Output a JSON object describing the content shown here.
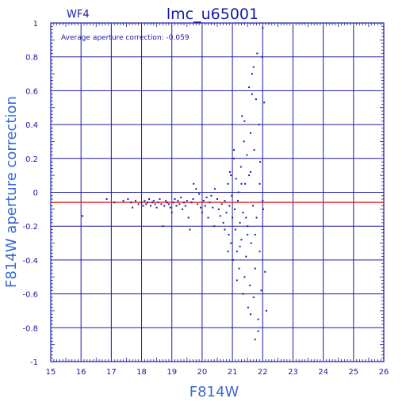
{
  "chart_data": {
    "type": "scatter",
    "panel_label": "WF4",
    "title": "lmc_u65001",
    "xlabel": "F814W",
    "ylabel": "F814W aperture correction",
    "annotation": "Average aperture correction: -0.059",
    "xlim": [
      15,
      26
    ],
    "ylim": [
      -1,
      1
    ],
    "x_ticks": [
      15,
      16,
      17,
      18,
      19,
      20,
      21,
      22,
      23,
      24,
      25,
      26
    ],
    "y_ticks": [
      -1,
      -0.8,
      -0.6,
      -0.4,
      -0.2,
      0,
      0.2,
      0.4,
      0.6,
      0.8,
      1
    ],
    "grid": true,
    "average_line": -0.059,
    "colors": {
      "axes": "#1a1aa6",
      "points": "#1a1aa6",
      "average_line": "#e02020"
    },
    "points": [
      [
        16.05,
        -0.14
      ],
      [
        16.85,
        -0.04
      ],
      [
        17.1,
        -0.06
      ],
      [
        17.4,
        -0.05
      ],
      [
        17.55,
        -0.04
      ],
      [
        17.65,
        -0.06
      ],
      [
        17.7,
        -0.09
      ],
      [
        17.8,
        -0.05
      ],
      [
        17.9,
        -0.07
      ],
      [
        18.0,
        -0.06
      ],
      [
        18.05,
        -0.08
      ],
      [
        18.1,
        -0.05
      ],
      [
        18.15,
        -0.07
      ],
      [
        18.2,
        -0.06
      ],
      [
        18.25,
        -0.04
      ],
      [
        18.3,
        -0.08
      ],
      [
        18.35,
        -0.06
      ],
      [
        18.4,
        -0.05
      ],
      [
        18.45,
        -0.07
      ],
      [
        18.5,
        -0.09
      ],
      [
        18.55,
        -0.06
      ],
      [
        18.6,
        -0.04
      ],
      [
        18.65,
        -0.07
      ],
      [
        18.7,
        -0.2
      ],
      [
        18.75,
        -0.08
      ],
      [
        18.8,
        -0.05
      ],
      [
        18.85,
        -0.06
      ],
      [
        18.9,
        -0.07
      ],
      [
        18.95,
        -0.09
      ],
      [
        19.0,
        -0.12
      ],
      [
        19.05,
        -0.06
      ],
      [
        19.1,
        -0.04
      ],
      [
        19.15,
        -0.08
      ],
      [
        19.2,
        -0.05
      ],
      [
        19.25,
        -0.07
      ],
      [
        19.3,
        -0.03
      ],
      [
        19.35,
        -0.1
      ],
      [
        19.4,
        -0.06
      ],
      [
        19.45,
        -0.08
      ],
      [
        19.5,
        -0.05
      ],
      [
        19.55,
        -0.15
      ],
      [
        19.6,
        -0.22
      ],
      [
        19.65,
        -0.06
      ],
      [
        19.7,
        -0.04
      ],
      [
        19.72,
        0.05
      ],
      [
        19.8,
        0.02
      ],
      [
        19.85,
        -0.07
      ],
      [
        19.9,
        -0.01
      ],
      [
        19.95,
        -0.09
      ],
      [
        20.0,
        -0.12
      ],
      [
        20.05,
        -0.05
      ],
      [
        20.1,
        -0.08
      ],
      [
        20.15,
        -0.03
      ],
      [
        20.2,
        -0.15
      ],
      [
        20.25,
        -0.06
      ],
      [
        20.3,
        -0.02
      ],
      [
        20.35,
        -0.09
      ],
      [
        20.4,
        -0.2
      ],
      [
        20.42,
        0.02
      ],
      [
        20.5,
        -0.04
      ],
      [
        20.55,
        -0.1
      ],
      [
        20.6,
        -0.14
      ],
      [
        20.65,
        -0.07
      ],
      [
        20.7,
        -0.18
      ],
      [
        20.75,
        -0.05
      ],
      [
        20.8,
        -0.12
      ],
      [
        20.85,
        0.05
      ],
      [
        20.88,
        -0.25
      ],
      [
        20.9,
        -0.08
      ],
      [
        20.92,
        0.12
      ],
      [
        20.95,
        -0.3
      ],
      [
        20.98,
        -0.02
      ],
      [
        21.0,
        -0.15
      ],
      [
        21.02,
        -0.4
      ],
      [
        21.05,
        0.2
      ],
      [
        21.08,
        -0.1
      ],
      [
        21.1,
        -0.22
      ],
      [
        21.12,
        0.08
      ],
      [
        21.15,
        -0.35
      ],
      [
        21.18,
        -0.05
      ],
      [
        21.2,
        0.0
      ],
      [
        21.22,
        -0.45
      ],
      [
        21.25,
        -0.18
      ],
      [
        21.28,
        0.15
      ],
      [
        21.3,
        -0.28
      ],
      [
        21.32,
        0.45
      ],
      [
        21.35,
        -0.12
      ],
      [
        21.38,
        0.3
      ],
      [
        21.4,
        -0.5
      ],
      [
        21.42,
        0.05
      ],
      [
        21.45,
        -0.38
      ],
      [
        21.48,
        0.22
      ],
      [
        21.5,
        -0.2
      ],
      [
        21.52,
        -0.68
      ],
      [
        21.55,
        0.1
      ],
      [
        21.58,
        -0.55
      ],
      [
        21.6,
        0.35
      ],
      [
        21.62,
        -0.3
      ],
      [
        21.65,
        0.7
      ],
      [
        21.68,
        -0.08
      ],
      [
        21.7,
        -0.62
      ],
      [
        21.72,
        0.25
      ],
      [
        21.75,
        -0.45
      ],
      [
        21.78,
        0.55
      ],
      [
        21.8,
        -0.15
      ],
      [
        21.82,
        0.82
      ],
      [
        21.85,
        -0.75
      ],
      [
        21.88,
        0.4
      ],
      [
        21.9,
        -0.35
      ],
      [
        21.92,
        0.18
      ],
      [
        21.95,
        -0.58
      ],
      [
        21.98,
        0.8
      ],
      [
        22.0,
        0.97
      ],
      [
        22.02,
        -0.1
      ],
      [
        22.05,
        0.53
      ],
      [
        22.08,
        -0.47
      ],
      [
        22.12,
        -0.7
      ],
      [
        21.75,
        -0.87
      ],
      [
        21.85,
        -0.82
      ],
      [
        21.6,
        -0.72
      ],
      [
        21.4,
        0.42
      ],
      [
        21.55,
        0.62
      ],
      [
        21.7,
        0.74
      ],
      [
        21.65,
        0.58
      ],
      [
        21.5,
        -0.25
      ],
      [
        21.35,
        -0.6
      ],
      [
        21.25,
        -0.32
      ],
      [
        21.15,
        -0.52
      ],
      [
        21.05,
        0.25
      ],
      [
        20.95,
        0.1
      ],
      [
        20.85,
        -0.35
      ],
      [
        20.75,
        -0.22
      ],
      [
        21.3,
        0.05
      ],
      [
        21.45,
        -0.15
      ],
      [
        21.6,
        0.12
      ],
      [
        21.75,
        -0.25
      ],
      [
        21.9,
        0.05
      ],
      [
        22.0,
        -0.05
      ]
    ]
  }
}
